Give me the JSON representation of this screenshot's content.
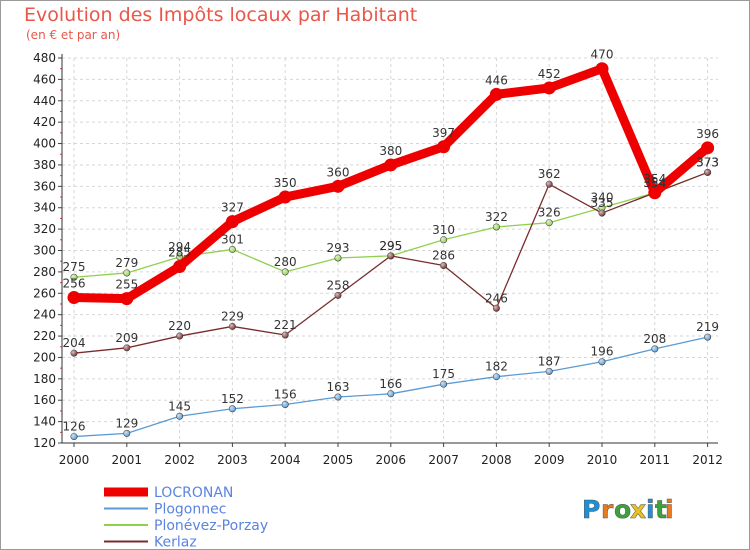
{
  "header": {
    "title": "Evolution des Impôts locaux par Habitant",
    "subtitle": "(en € et par an)"
  },
  "logo": {
    "text": "Proxiti"
  },
  "chart_data": {
    "type": "line",
    "title": "Evolution des Impôts locaux par Habitant",
    "subtitle": "(en € et par an)",
    "xlabel": "",
    "ylabel": "",
    "x": [
      "2000",
      "2001",
      "2002",
      "2003",
      "2004",
      "2005",
      "2006",
      "2007",
      "2008",
      "2009",
      "2010",
      "2011",
      "2012"
    ],
    "ylim": [
      120,
      480
    ],
    "yticks": [
      120,
      140,
      160,
      180,
      200,
      220,
      240,
      260,
      280,
      300,
      320,
      340,
      360,
      380,
      400,
      420,
      440,
      460,
      480
    ],
    "grid": true,
    "legend_position": "bottom-left",
    "series": [
      {
        "name": "LOCRONAN",
        "color": "#ee0000",
        "values": [
          256,
          255,
          285,
          327,
          350,
          360,
          380,
          397,
          446,
          452,
          470,
          354,
          396
        ]
      },
      {
        "name": "Plogonnec",
        "color": "#5a9bd5",
        "values": [
          126,
          129,
          145,
          152,
          156,
          163,
          166,
          175,
          182,
          187,
          196,
          208,
          219
        ]
      },
      {
        "name": "Plonévez-Porzay",
        "color": "#8fd14f",
        "values": [
          275,
          279,
          294,
          301,
          280,
          293,
          295,
          310,
          322,
          326,
          340,
          354,
          373
        ]
      },
      {
        "name": "Kerlaz",
        "color": "#7a2c2c",
        "values": [
          204,
          209,
          220,
          229,
          221,
          258,
          295,
          286,
          246,
          362,
          335,
          354,
          373
        ]
      }
    ]
  }
}
